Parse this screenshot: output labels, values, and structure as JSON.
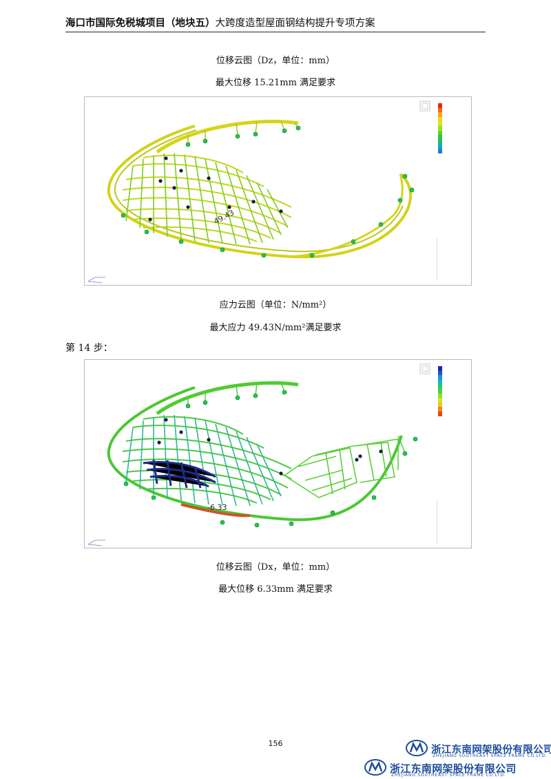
{
  "header": {
    "title_bold": "海口市国际免税城项目（地块五）",
    "title_rest": "大跨度造型屋面钢结构提升专项方案"
  },
  "figure1": {
    "caption_top": "位移云图（Dz，单位：mm）",
    "caption_result": "最大位移 15.21mm 满足要求",
    "annotation": "49.43",
    "legend_colors": [
      "#e02a1a",
      "#f26a1a",
      "#f7a41c",
      "#f7d21c",
      "#d4e81c",
      "#9be21e",
      "#5cd423",
      "#2ec83a",
      "#20b97a",
      "#1aa8b8",
      "#1a7fd6"
    ],
    "palette": {
      "mesh_a": "#c8d41e",
      "mesh_b": "#58c828",
      "edge": "#d6d41a",
      "node": "#22c848"
    }
  },
  "figure2": {
    "caption_top": "应力云图（单位：N/mm²）",
    "caption_result": "最大应力 49.43N/mm²满足要求",
    "annotation": "-6.33",
    "legend_colors": [
      "#1a2aa8",
      "#1a55c8",
      "#1a95d2",
      "#1ab8b0",
      "#22c86a",
      "#4fd23a",
      "#8ee02a",
      "#c8e61e",
      "#f0c81e",
      "#f08a1e",
      "#e04a1a"
    ],
    "palette": {
      "mesh_a": "#50c832",
      "mesh_b": "#2eb4a6",
      "deep": "#1e2a8c",
      "edge": "#c8562a",
      "node": "#22c848"
    }
  },
  "step_label": "第 14 步：",
  "figure2_caption_bottom": "位移云图（Dx，单位：mm）",
  "figure2_caption_bottom_result": "最大位移 6.33mm 满足要求",
  "page_number": "156",
  "company": {
    "name_cn": "浙江东南网架股份有限公司",
    "name_en": "ZHEJIANG SOUTHEAST SPACE FRAME CO.LTD."
  }
}
